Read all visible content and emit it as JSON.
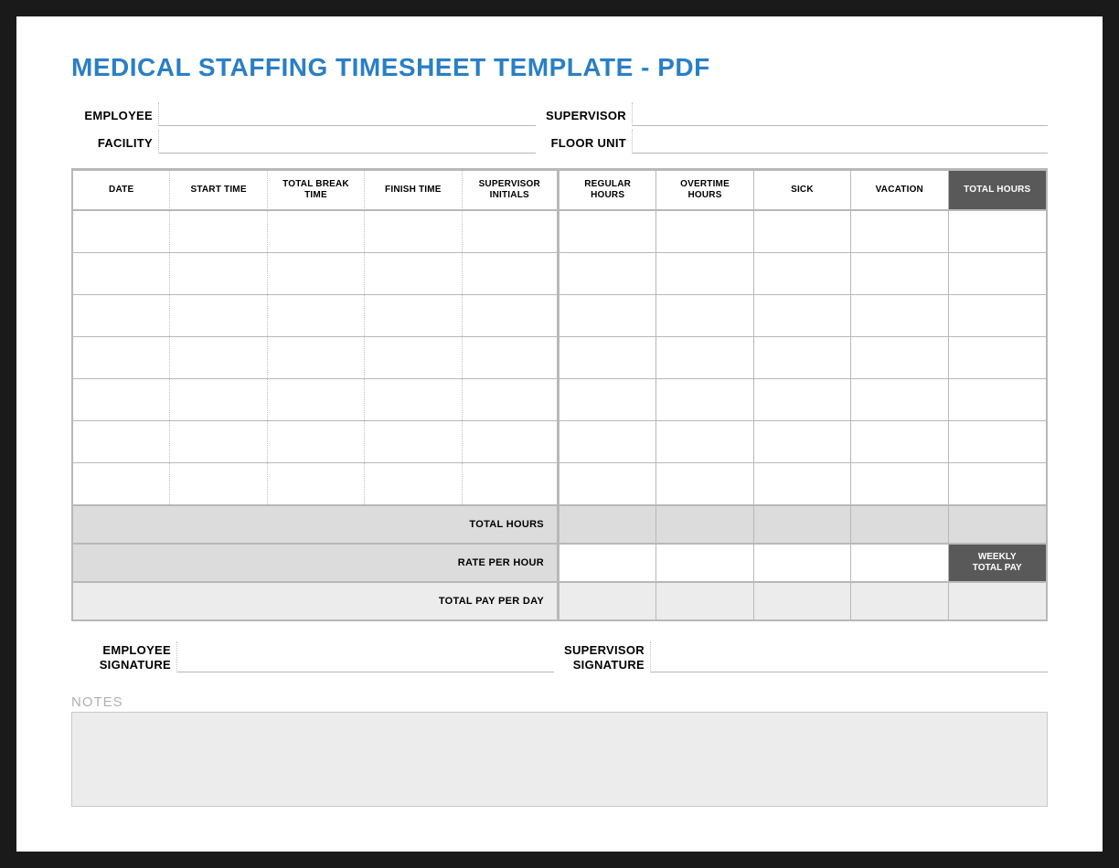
{
  "title": "MEDICAL STAFFING TIMESHEET TEMPLATE - PDF",
  "colors": {
    "title": "#2a7fc5",
    "border": "#b8b8b8",
    "dotted": "#bfbfbf",
    "bg_grey_mid": "#dcdcdc",
    "bg_grey_lite": "#ececec",
    "bg_dark": "#595959",
    "text_dark_on": "#ffffff",
    "notes_label": "#b0b0b0",
    "page_bg": "#1a1a1a",
    "sheet_bg": "#ffffff"
  },
  "header_fields": {
    "employee": {
      "label": "EMPLOYEE",
      "value": ""
    },
    "supervisor": {
      "label": "SUPERVISOR",
      "value": ""
    },
    "facility": {
      "label": "FACILITY",
      "value": ""
    },
    "floor_unit": {
      "label": "FLOOR UNIT",
      "value": ""
    }
  },
  "table": {
    "columns": [
      {
        "key": "date",
        "label": "DATE",
        "width_pct": 9.3,
        "sep": "dotted"
      },
      {
        "key": "start_time",
        "label": "START TIME",
        "width_pct": 9.3,
        "sep": "dotted"
      },
      {
        "key": "total_break_time",
        "label": "TOTAL BREAK TIME",
        "width_pct": 9.3,
        "sep": "dotted"
      },
      {
        "key": "finish_time",
        "label": "FINISH TIME",
        "width_pct": 9.3,
        "sep": "dotted"
      },
      {
        "key": "supervisor_initials",
        "label": "SUPERVISOR INITIALS",
        "width_pct": 9.3,
        "sep": "thick"
      },
      {
        "key": "regular_hours",
        "label": "REGULAR HOURS",
        "width_pct": 9.3,
        "sep": "solid"
      },
      {
        "key": "overtime_hours",
        "label": "OVERTIME HOURS",
        "width_pct": 9.3,
        "sep": "solid"
      },
      {
        "key": "sick",
        "label": "SICK",
        "width_pct": 9.3,
        "sep": "solid"
      },
      {
        "key": "vacation",
        "label": "VACATION",
        "width_pct": 9.3,
        "sep": "solid"
      },
      {
        "key": "total_hours",
        "label": "TOTAL HOURS",
        "width_pct": 9.3,
        "sep": "none",
        "header_dark": true
      }
    ],
    "row_count": 7,
    "rows": [
      [
        "",
        "",
        "",
        "",
        "",
        "",
        "",
        "",
        "",
        ""
      ],
      [
        "",
        "",
        "",
        "",
        "",
        "",
        "",
        "",
        "",
        ""
      ],
      [
        "",
        "",
        "",
        "",
        "",
        "",
        "",
        "",
        "",
        ""
      ],
      [
        "",
        "",
        "",
        "",
        "",
        "",
        "",
        "",
        "",
        ""
      ],
      [
        "",
        "",
        "",
        "",
        "",
        "",
        "",
        "",
        "",
        ""
      ],
      [
        "",
        "",
        "",
        "",
        "",
        "",
        "",
        "",
        "",
        ""
      ],
      [
        "",
        "",
        "",
        "",
        "",
        "",
        "",
        "",
        "",
        ""
      ]
    ],
    "summary": {
      "total_hours": {
        "label": "TOTAL HOURS",
        "cells": [
          "",
          "",
          "",
          "",
          ""
        ],
        "label_bg": "grey_mid",
        "cell_bg": "grey_mid",
        "last_bg": "grey_mid"
      },
      "rate_per_hour": {
        "label": "RATE PER HOUR",
        "cells": [
          "",
          "",
          "",
          ""
        ],
        "label_bg": "grey_mid",
        "cell_bg": "white",
        "last_label": "WEEKLY TOTAL PAY",
        "last_bg": "dark"
      },
      "total_pay_per_day": {
        "label": "TOTAL PAY PER DAY",
        "cells": [
          "",
          "",
          "",
          "",
          ""
        ],
        "label_bg": "grey_lite",
        "cell_bg": "grey_lite",
        "last_bg": "grey_lite"
      }
    }
  },
  "signatures": {
    "employee": {
      "label": "EMPLOYEE SIGNATURE",
      "value": ""
    },
    "supervisor": {
      "label": "SUPERVISOR SIGNATURE",
      "value": ""
    }
  },
  "notes": {
    "label": "NOTES",
    "value": ""
  }
}
